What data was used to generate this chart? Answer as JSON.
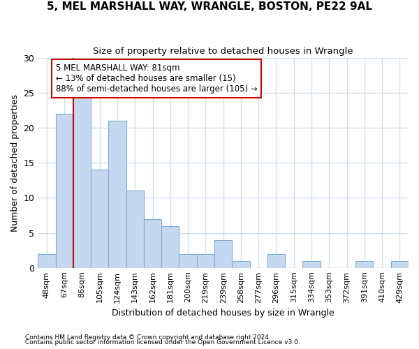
{
  "title1": "5, MEL MARSHALL WAY, WRANGLE, BOSTON, PE22 9AL",
  "title2": "Size of property relative to detached houses in Wrangle",
  "xlabel": "Distribution of detached houses by size in Wrangle",
  "ylabel": "Number of detached properties",
  "categories": [
    "48sqm",
    "67sqm",
    "86sqm",
    "105sqm",
    "124sqm",
    "143sqm",
    "162sqm",
    "181sqm",
    "200sqm",
    "219sqm",
    "239sqm",
    "258sqm",
    "277sqm",
    "296sqm",
    "315sqm",
    "334sqm",
    "353sqm",
    "372sqm",
    "391sqm",
    "410sqm",
    "429sqm"
  ],
  "values": [
    2,
    22,
    25,
    14,
    21,
    11,
    7,
    6,
    2,
    2,
    4,
    1,
    0,
    2,
    0,
    1,
    0,
    0,
    1,
    0,
    1
  ],
  "bar_color": "#c5d8f0",
  "bar_edge_color": "#7aaed6",
  "vline_x": 1.5,
  "vline_color": "#cc0000",
  "annotation_text": "5 MEL MARSHALL WAY: 81sqm\n← 13% of detached houses are smaller (15)\n88% of semi-detached houses are larger (105) →",
  "annotation_box_color": "#ffffff",
  "annotation_box_edge": "#cc0000",
  "ylim": [
    0,
    30
  ],
  "yticks": [
    0,
    5,
    10,
    15,
    20,
    25,
    30
  ],
  "footer1": "Contains HM Land Registry data © Crown copyright and database right 2024.",
  "footer2": "Contains public sector information licensed under the Open Government Licence v3.0.",
  "bg_color": "#ffffff",
  "plot_bg_color": "#ffffff",
  "grid_color": "#d0dff0"
}
